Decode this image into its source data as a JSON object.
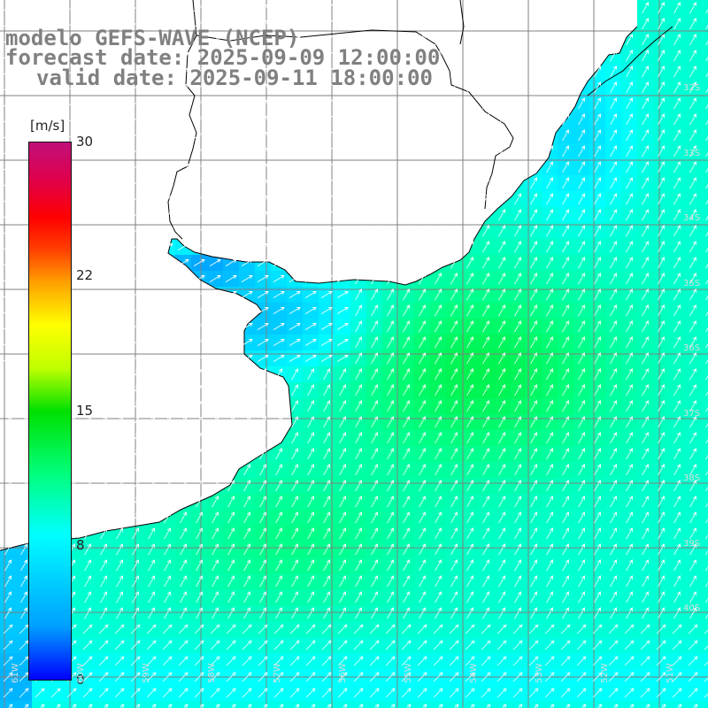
{
  "title": {
    "line1": "modelo GEFS-WAVE (NCEP)",
    "line2": "forecast date: 2025-09-09 12:00:00",
    "line3": "valid date: 2025-09-11 18:00:00"
  },
  "colorbar": {
    "unit": "[m/s]",
    "ticks": [
      "30",
      "22",
      "15",
      "8",
      "0"
    ],
    "min": 0,
    "max": 30,
    "colors": [
      "#0000ff",
      "#00a0ff",
      "#00ffff",
      "#00ff80",
      "#00e000",
      "#c0ff00",
      "#ffff00",
      "#ffa000",
      "#ff0000",
      "#c0107a"
    ]
  },
  "lat_labels": [
    "32S",
    "33S",
    "34S",
    "35S",
    "36S",
    "37S",
    "38S",
    "39S",
    "40S"
  ],
  "lon_labels": [
    "61W",
    "60W",
    "59W",
    "58W",
    "57W",
    "56W",
    "55W",
    "54W",
    "53W",
    "52W",
    "51W"
  ],
  "field": {
    "variable": "wind speed",
    "typical_open_ocean_ms": 10,
    "max_ms": 13,
    "coastal_min_ms": 3
  },
  "colors": {
    "land": "#ffffff",
    "grid": "#808080",
    "coast": "#000000",
    "arrow": "#ffffff"
  }
}
